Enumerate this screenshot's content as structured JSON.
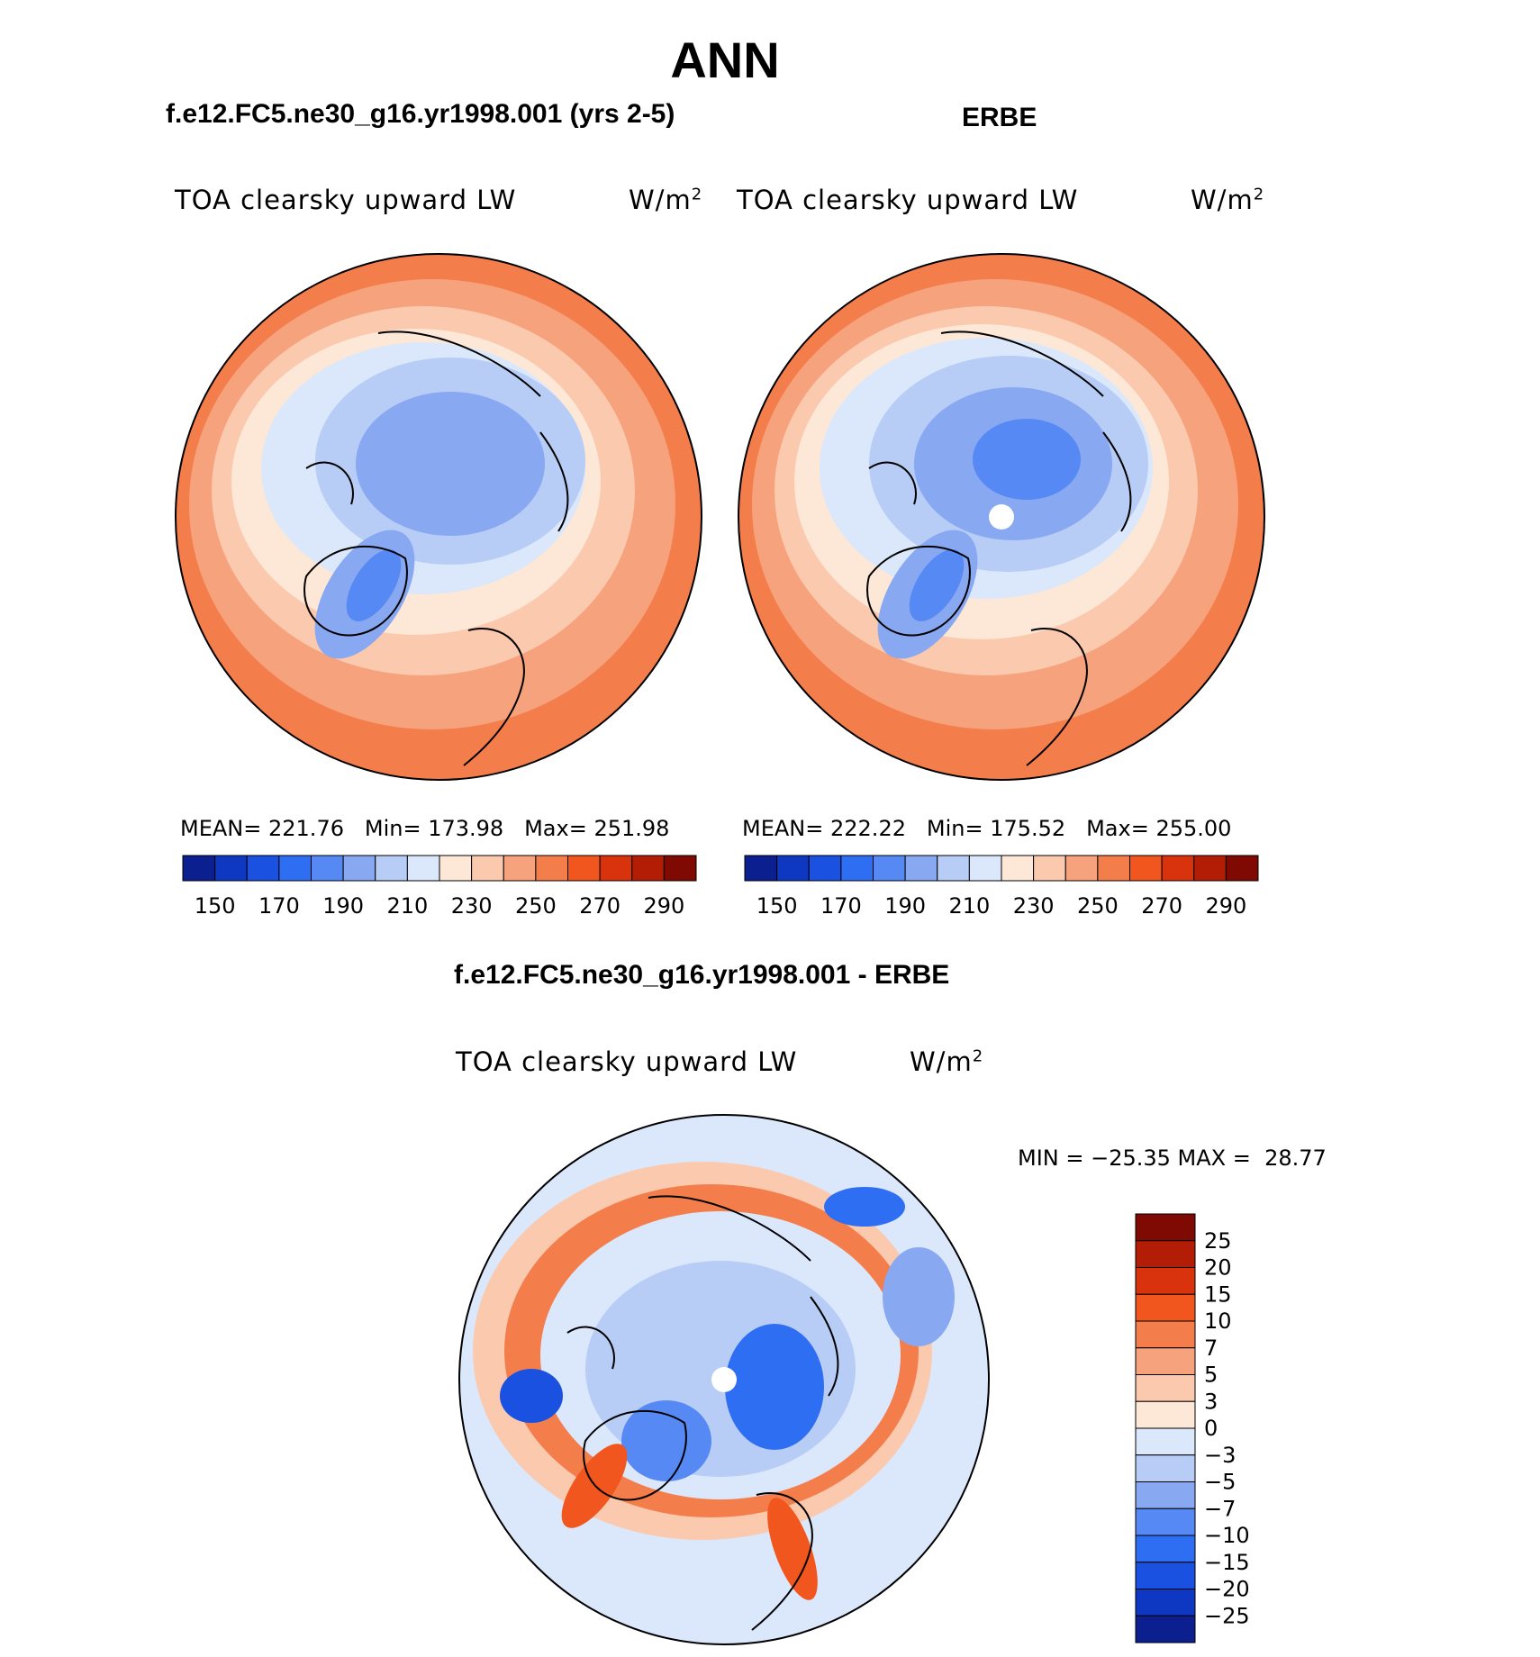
{
  "header": {
    "season": "ANN",
    "left_case": "f.e12.FC5.ne30_g16.yr1998.001 (yrs 2-5)",
    "right_case": "ERBE",
    "diff_case": "f.e12.FC5.ne30_g16.yr1998.001 - ERBE"
  },
  "panels": {
    "model": {
      "variable": "TOA clearsky upward LW",
      "units": "W/m",
      "units_exp": "2",
      "mean_label": "MEAN=",
      "mean": "221.76",
      "min_label": "Min=",
      "min": "173.98",
      "max_label": "Max=",
      "max": "251.98"
    },
    "obs": {
      "variable": "TOA clearsky upward LW",
      "units": "W/m",
      "units_exp": "2",
      "mean_label": "MEAN=",
      "mean": "222.22",
      "min_label": "Min=",
      "min": "175.52",
      "max_label": "Max=",
      "max": "255.00"
    },
    "diff": {
      "variable": "TOA clearsky upward LW",
      "units": "W/m",
      "units_exp": "2",
      "minmax": "MIN = −25.35 MAX =  28.77"
    }
  },
  "chart_data": [
    {
      "type": "heatmap",
      "title": "TOA clearsky upward LW",
      "projection": "north polar stereographic",
      "units": "W/m2",
      "stats": {
        "mean": 221.76,
        "min": 173.98,
        "max": 251.98
      },
      "colorbar_levels": [
        150,
        160,
        170,
        180,
        190,
        200,
        210,
        220,
        230,
        240,
        250,
        260,
        270,
        280,
        290
      ],
      "colorbar_tick_labels": [
        "150",
        "170",
        "190",
        "210",
        "230",
        "250",
        "270",
        "290"
      ],
      "colorbar_colors": [
        "#0b1f8f",
        "#0e37c2",
        "#1a51e0",
        "#2e6ef2",
        "#5689f4",
        "#88a8f2",
        "#b7cdf6",
        "#dbe8fb",
        "#fde7d6",
        "#fbc9ae",
        "#f6a27c",
        "#f47d4c",
        "#f2561f",
        "#d8330c",
        "#b31d06",
        "#7e0a03"
      ]
    },
    {
      "type": "heatmap",
      "title": "TOA clearsky upward LW",
      "projection": "north polar stereographic",
      "units": "W/m2",
      "stats": {
        "mean": 222.22,
        "min": 175.52,
        "max": 255.0
      },
      "colorbar_levels": [
        150,
        160,
        170,
        180,
        190,
        200,
        210,
        220,
        230,
        240,
        250,
        260,
        270,
        280,
        290
      ],
      "colorbar_tick_labels": [
        "150",
        "170",
        "190",
        "210",
        "230",
        "250",
        "270",
        "290"
      ],
      "colorbar_colors": [
        "#0b1f8f",
        "#0e37c2",
        "#1a51e0",
        "#2e6ef2",
        "#5689f4",
        "#88a8f2",
        "#b7cdf6",
        "#dbe8fb",
        "#fde7d6",
        "#fbc9ae",
        "#f6a27c",
        "#f47d4c",
        "#f2561f",
        "#d8330c",
        "#b31d06",
        "#7e0a03"
      ]
    },
    {
      "type": "heatmap",
      "title": "TOA clearsky upward LW",
      "projection": "north polar stereographic",
      "units": "W/m2",
      "stats": {
        "min": -25.35,
        "max": 28.77
      },
      "colorbar_levels": [
        -25,
        -20,
        -15,
        -10,
        -7,
        -5,
        -3,
        0,
        3,
        5,
        7,
        10,
        15,
        20,
        25
      ],
      "colorbar_tick_labels": [
        "25",
        "20",
        "15",
        "10",
        "7",
        "5",
        "3",
        "0",
        "−3",
        "−5",
        "−7",
        "−10",
        "−15",
        "−20",
        "−25"
      ],
      "colorbar_colors": [
        "#7e0a03",
        "#b31d06",
        "#d8330c",
        "#f2561f",
        "#f47d4c",
        "#f6a27c",
        "#fbc9ae",
        "#fde7d6",
        "#dbe8fb",
        "#b7cdf6",
        "#88a8f2",
        "#5689f4",
        "#2e6ef2",
        "#1a51e0",
        "#0e37c2",
        "#0b1f8f"
      ]
    }
  ]
}
